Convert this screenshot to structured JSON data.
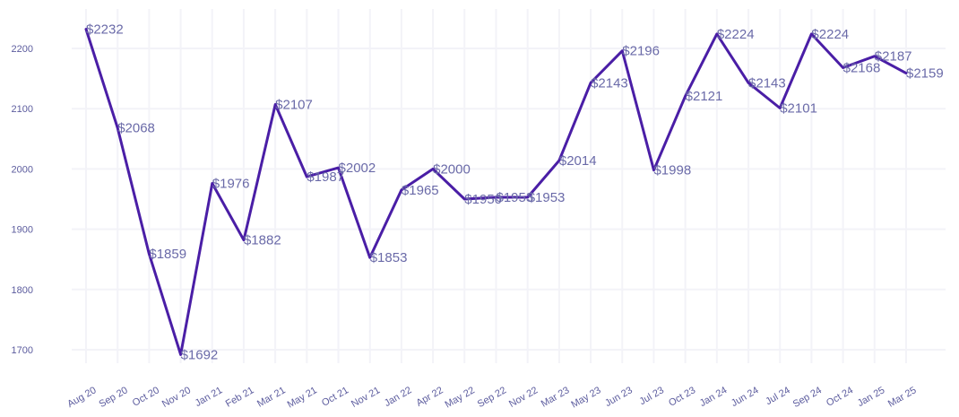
{
  "chart_data": {
    "type": "line",
    "categories": [
      "Aug 20",
      "Sep 20",
      "Oct 20",
      "Nov 20",
      "Jan 21",
      "Feb 21",
      "Mar 21",
      "May 21",
      "Oct 21",
      "Nov 21",
      "Jan 22",
      "Apr 22",
      "May 22",
      "Sep 22",
      "Nov 22",
      "Mar 23",
      "May 23",
      "Jun 23",
      "Jul 23",
      "Oct 23",
      "Jan 24",
      "Jun 24",
      "Jul 24",
      "Sep 24",
      "Oct 24",
      "Jan 25",
      "Mar 25"
    ],
    "series": [
      {
        "values": [
          2232,
          2068,
          1859,
          1692,
          1976,
          1882,
          2107,
          1987,
          2002,
          1853,
          1965,
          2000,
          1950,
          1953,
          1953,
          2014,
          2143,
          2196,
          1998,
          2121,
          2224,
          2143,
          2101,
          2224,
          2168,
          2187,
          2159
        ],
        "labels": [
          "$2232",
          "$2068",
          "$1859",
          "$1692",
          "$1976",
          "$1882",
          "$2107",
          "$1987",
          "$2002",
          "$1853",
          "$1965",
          "$2000",
          "$1950",
          "$1953",
          "$1953",
          "$2014",
          "$2143",
          "$2196",
          "$1998",
          "$2121",
          "$2224",
          "$2143",
          "$2101",
          "$2224",
          "$2168",
          "$2187",
          "$2159"
        ],
        "color": "#4a1ea6"
      }
    ],
    "yticks": [
      1700,
      1800,
      1900,
      2000,
      2100,
      2200
    ],
    "ylim": [
      1670,
      2260
    ],
    "grid": true,
    "title": "",
    "xlabel": "",
    "ylabel": ""
  }
}
